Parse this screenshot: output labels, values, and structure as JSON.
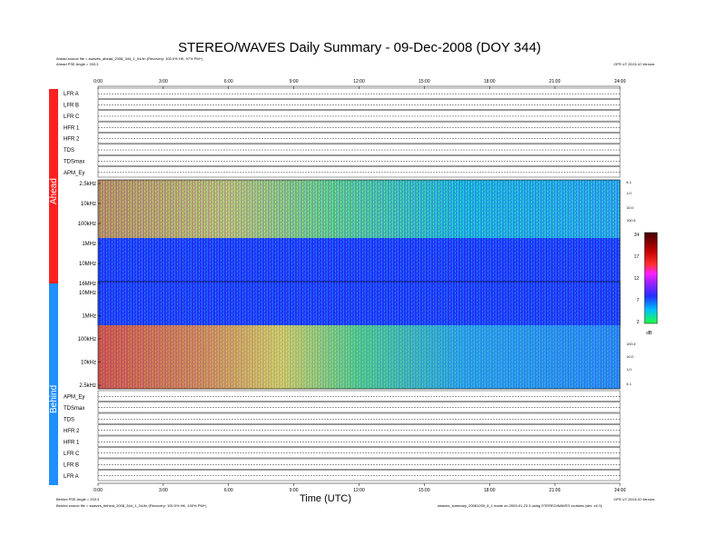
{
  "title": "STEREO/WAVES Daily Summary - 09-Dec-2008 (DOY 344)",
  "header": {
    "ahead_source": "Ahead source file = swaves_ahead_2008_344_1_04.fin (Recovery: 100.0% HK, 97% PM+)",
    "ahead_angle": "Ahead PSE Angle = 333.3",
    "right_top": "GPS UT 2015-10 Version"
  },
  "footer": {
    "behind_angle": "Behind PSE Angle = 333.3",
    "behind_source": "Behind source file = swaves_behind_2008_344_1_04.fin (Recovery: 100.0% HK, 100% PM+)",
    "right_1": "GPS UT 2015-10 Version",
    "right_2": "swaves_summary_20081209_6_1 made on 2009-01-23 3 using STEREO/WAVES routines (dev. v4.0)"
  },
  "sides": {
    "ahead": "Ahead",
    "behind": "Behind"
  },
  "chart_data": {
    "type": "heatmap",
    "xlabel": "Time (UTC)",
    "x_ticks": [
      "0:00",
      "3:00",
      "6:00",
      "9:00",
      "12:00",
      "15:00",
      "18:00",
      "21:00",
      "24:00"
    ],
    "ahead_rows": [
      "LFR A",
      "LFR B",
      "LFR C",
      "HFR 1",
      "HFR 2",
      "TDS",
      "TDSmax",
      "APM_Ey"
    ],
    "behind_rows": [
      "APM_Ey",
      "TDSmax",
      "TDS",
      "HFR 2",
      "HFR 1",
      "LFR C",
      "LFR B",
      "LFR A"
    ],
    "ahead_freq_ticks": [
      "2.5kHz",
      "10kHz",
      "100kHz",
      "1MHz",
      "10MHz",
      "16MHz"
    ],
    "behind_freq_ticks": [
      "10MHz",
      "1MHz",
      "100kHz",
      "10kHz",
      "2.5kHz"
    ],
    "colorbar": {
      "ticks": [
        "24",
        "17",
        "12",
        "7",
        "2"
      ],
      "unit": "dB",
      "range": [
        2,
        24
      ]
    },
    "right_scale": [
      "0.1",
      "1.0",
      "10.0",
      "100.0"
    ]
  }
}
